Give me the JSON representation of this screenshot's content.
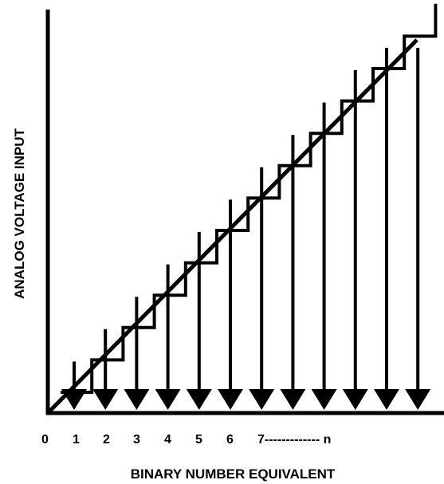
{
  "diagram": {
    "y_axis_label": "ANALOG VOLTAGE INPUT",
    "x_axis_label": "BINARY NUMBER EQUIVALENT",
    "x_tick_labels": [
      "0",
      "1",
      "2",
      "3",
      "4",
      "5",
      "6",
      "7------------- n"
    ],
    "step_count": 12,
    "line_color": "#000000"
  }
}
